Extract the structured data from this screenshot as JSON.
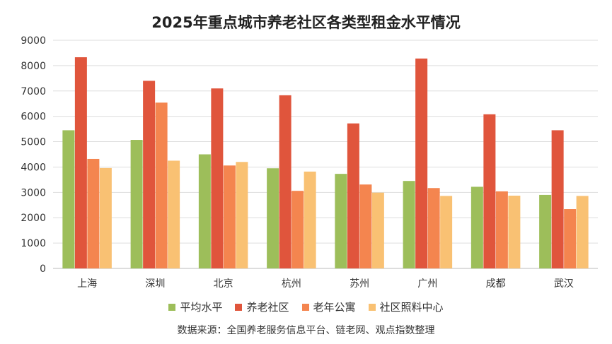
{
  "chart_data": {
    "type": "bar",
    "title": "2025年重点城市养老社区各类型租金水平情况",
    "categories": [
      "上海",
      "深圳",
      "北京",
      "杭州",
      "苏州",
      "广州",
      "成都",
      "武汉"
    ],
    "series": [
      {
        "name": "平均水平",
        "color": "#9DBE5A",
        "values": [
          5450,
          5070,
          4500,
          3950,
          3730,
          3450,
          3220,
          2900
        ]
      },
      {
        "name": "养老社区",
        "color": "#E0553C",
        "values": [
          8330,
          7400,
          7100,
          6830,
          5720,
          8280,
          6080,
          5450
        ]
      },
      {
        "name": "老年公寓",
        "color": "#F4854F",
        "values": [
          4320,
          6540,
          4060,
          3060,
          3310,
          3170,
          3040,
          2340
        ]
      },
      {
        "name": "社区照料中心",
        "color": "#F9C173",
        "values": [
          3960,
          4250,
          4200,
          3820,
          2990,
          2860,
          2870,
          2860
        ]
      }
    ],
    "ylim": [
      0,
      9000
    ],
    "yticks": [
      0,
      1000,
      2000,
      3000,
      4000,
      5000,
      6000,
      7000,
      8000,
      9000
    ],
    "grid": true,
    "legend_position": "bottom"
  },
  "source_note": "数据来源：全国养老服务信息平台、链老网、观点指数整理"
}
